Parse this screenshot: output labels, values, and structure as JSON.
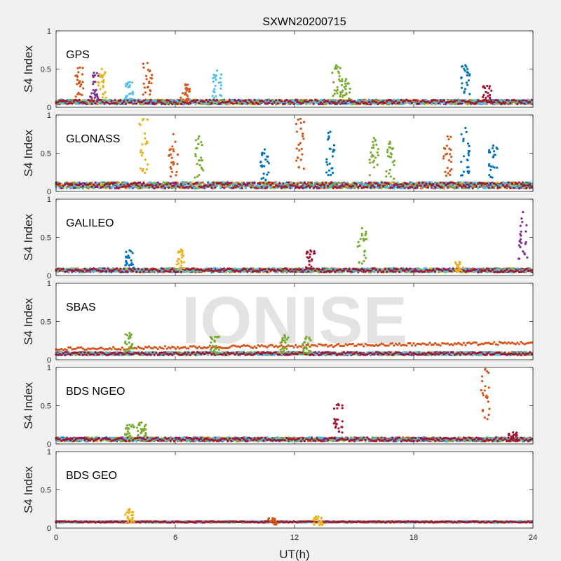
{
  "title": "SXWN20200715",
  "xlabel": "UT(h)",
  "watermark": "IONISE",
  "series_colors": [
    "#0072bd",
    "#d95319",
    "#edb120",
    "#7e2f8e",
    "#77ac30",
    "#4dbeee",
    "#a2142f"
  ],
  "chart_data": [
    {
      "type": "scatter",
      "panel": "GPS",
      "ylabel": "S4 Index",
      "xlim": [
        0,
        24
      ],
      "ylim": [
        0,
        1
      ],
      "xticks": [
        "0",
        "6",
        "12",
        "18",
        "24"
      ],
      "yticks": [
        "0",
        "0.5",
        "1"
      ],
      "baseline": 0.07,
      "noise": 0.03,
      "clusters": [
        {
          "x": 1.2,
          "y": 0.52,
          "series": 1
        },
        {
          "x": 1.9,
          "y": 0.45,
          "series": 3
        },
        {
          "x": 2.3,
          "y": 0.5,
          "series": 2
        },
        {
          "x": 3.7,
          "y": 0.33,
          "series": 5
        },
        {
          "x": 4.6,
          "y": 0.58,
          "series": 1
        },
        {
          "x": 6.5,
          "y": 0.3,
          "series": 1
        },
        {
          "x": 8.1,
          "y": 0.48,
          "series": 5
        },
        {
          "x": 14.1,
          "y": 0.55,
          "series": 4
        },
        {
          "x": 14.6,
          "y": 0.37,
          "series": 4
        },
        {
          "x": 20.6,
          "y": 0.55,
          "series": 0
        },
        {
          "x": 21.7,
          "y": 0.28,
          "series": 6
        }
      ]
    },
    {
      "type": "scatter",
      "panel": "GLONASS",
      "ylabel": "S4 Index",
      "xlim": [
        0,
        24
      ],
      "ylim": [
        0,
        1
      ],
      "xticks": [
        "0",
        "6",
        "12",
        "18",
        "24"
      ],
      "yticks": [
        "0",
        "0.5",
        "1"
      ],
      "baseline": 0.08,
      "noise": 0.04,
      "clusters": [
        {
          "x": 4.4,
          "y": 0.95,
          "series": 2
        },
        {
          "x": 5.9,
          "y": 0.75,
          "series": 1
        },
        {
          "x": 7.2,
          "y": 0.72,
          "series": 4
        },
        {
          "x": 10.5,
          "y": 0.55,
          "series": 0
        },
        {
          "x": 12.3,
          "y": 0.95,
          "series": 1
        },
        {
          "x": 13.8,
          "y": 0.78,
          "series": 0
        },
        {
          "x": 16.0,
          "y": 0.7,
          "series": 4
        },
        {
          "x": 16.8,
          "y": 0.65,
          "series": 4
        },
        {
          "x": 19.7,
          "y": 0.72,
          "series": 1
        },
        {
          "x": 20.6,
          "y": 0.83,
          "series": 0
        },
        {
          "x": 22.0,
          "y": 0.6,
          "series": 0
        }
      ]
    },
    {
      "type": "scatter",
      "panel": "GALILEO",
      "ylabel": "S4 Index",
      "xlim": [
        0,
        24
      ],
      "ylim": [
        0,
        1
      ],
      "xticks": [
        "0",
        "6",
        "12",
        "18",
        "24"
      ],
      "yticks": [
        "0",
        "0.5",
        "1"
      ],
      "baseline": 0.07,
      "noise": 0.025,
      "clusters": [
        {
          "x": 3.7,
          "y": 0.33,
          "series": 0
        },
        {
          "x": 6.3,
          "y": 0.34,
          "series": 2
        },
        {
          "x": 12.8,
          "y": 0.33,
          "series": 6
        },
        {
          "x": 15.4,
          "y": 0.62,
          "series": 4
        },
        {
          "x": 20.3,
          "y": 0.18,
          "series": 2
        },
        {
          "x": 23.5,
          "y": 0.83,
          "series": 3
        }
      ]
    },
    {
      "type": "scatter",
      "panel": "SBAS",
      "ylabel": "S4 Index",
      "xlim": [
        0,
        24
      ],
      "ylim": [
        0,
        1
      ],
      "xticks": [
        "0",
        "6",
        "12",
        "18",
        "24"
      ],
      "yticks": [
        "0",
        "0.5",
        "1"
      ],
      "baseline": 0.08,
      "noise": 0.02,
      "clusters": [
        {
          "x": 3.7,
          "y": 0.35,
          "series": 4
        },
        {
          "x": 8.0,
          "y": 0.3,
          "series": 4
        },
        {
          "x": 11.5,
          "y": 0.32,
          "series": 4
        },
        {
          "x": 12.6,
          "y": 0.3,
          "series": 4
        }
      ],
      "trend": {
        "series": 1,
        "from": 0.14,
        "to": 0.22
      }
    },
    {
      "type": "scatter",
      "panel": "BDS NGEO",
      "ylabel": "S4 Index",
      "xlim": [
        0,
        24
      ],
      "ylim": [
        0,
        1
      ],
      "xticks": [
        "0",
        "6",
        "12",
        "18",
        "24"
      ],
      "yticks": [
        "0",
        "0.5",
        "1"
      ],
      "baseline": 0.06,
      "noise": 0.025,
      "clusters": [
        {
          "x": 3.7,
          "y": 0.25,
          "series": 4
        },
        {
          "x": 4.3,
          "y": 0.28,
          "series": 4
        },
        {
          "x": 14.2,
          "y": 0.52,
          "series": 6
        },
        {
          "x": 21.6,
          "y": 0.98,
          "series": 1
        },
        {
          "x": 23.0,
          "y": 0.15,
          "series": 6
        }
      ]
    },
    {
      "type": "scatter",
      "panel": "BDS GEO",
      "ylabel": "S4 Index",
      "xlim": [
        0,
        24
      ],
      "ylim": [
        0,
        1
      ],
      "xticks": [
        "0",
        "6",
        "12",
        "18",
        "24"
      ],
      "yticks": [
        "0",
        "0.5",
        "1"
      ],
      "baseline": 0.08,
      "noise": 0.008,
      "clusters": [
        {
          "x": 3.7,
          "y": 0.25,
          "series": 2
        },
        {
          "x": 10.9,
          "y": 0.13,
          "series": 1
        },
        {
          "x": 13.2,
          "y": 0.15,
          "series": 2
        }
      ]
    }
  ]
}
